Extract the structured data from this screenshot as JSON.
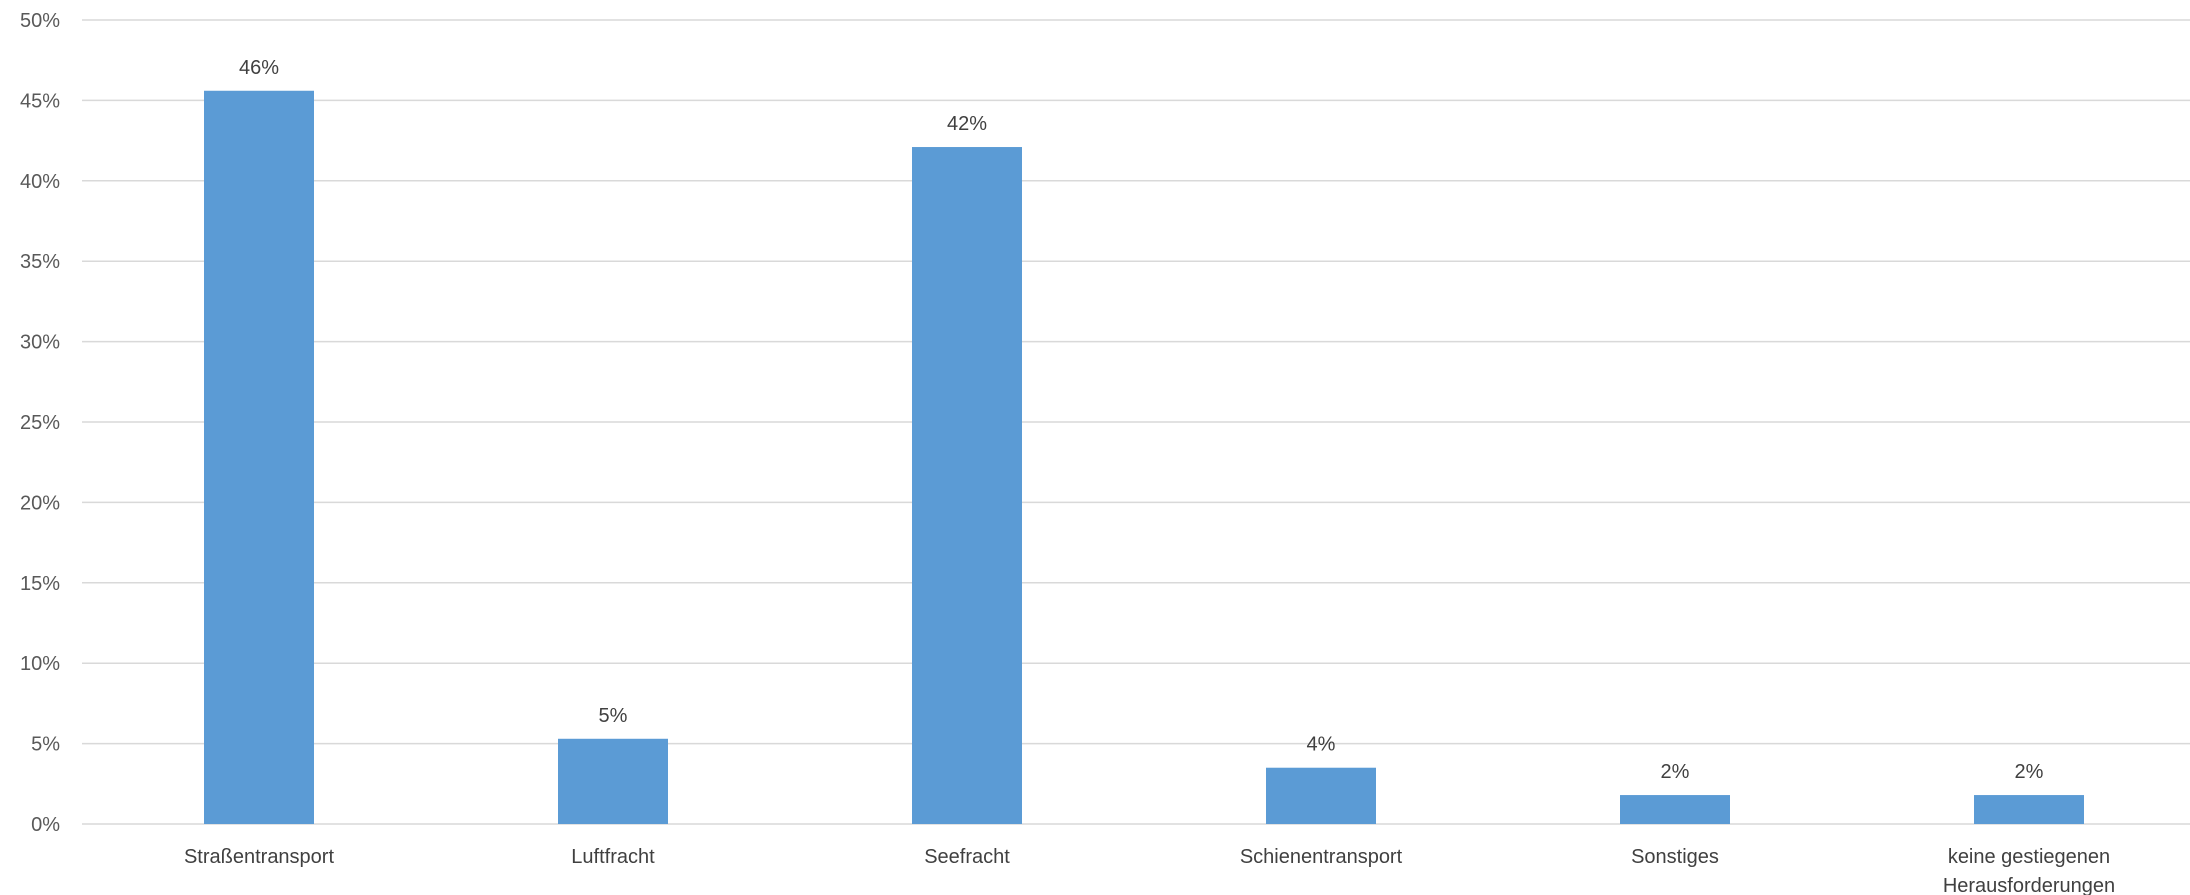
{
  "chart_data": {
    "type": "bar",
    "title": "",
    "xlabel": "",
    "ylabel": "",
    "categories": [
      "Straßentransport",
      "Luftfracht",
      "Seefracht",
      "Schienentransport",
      "Sonstiges",
      "keine gestiegenen Herausforderungen"
    ],
    "values": [
      45.6,
      5.3,
      42.1,
      3.5,
      1.8,
      1.8
    ],
    "data_labels": [
      "46%",
      "5%",
      "42%",
      "4%",
      "2%",
      "2%"
    ],
    "ylim": [
      0,
      50
    ],
    "y_ticks": [
      0,
      5,
      10,
      15,
      20,
      25,
      30,
      35,
      40,
      45,
      50
    ],
    "y_tick_labels": [
      "0%",
      "5%",
      "10%",
      "15%",
      "20%",
      "25%",
      "30%",
      "35%",
      "40%",
      "45%",
      "50%"
    ],
    "grid": true,
    "legend": "none",
    "bar_color": "#5b9bd5"
  }
}
